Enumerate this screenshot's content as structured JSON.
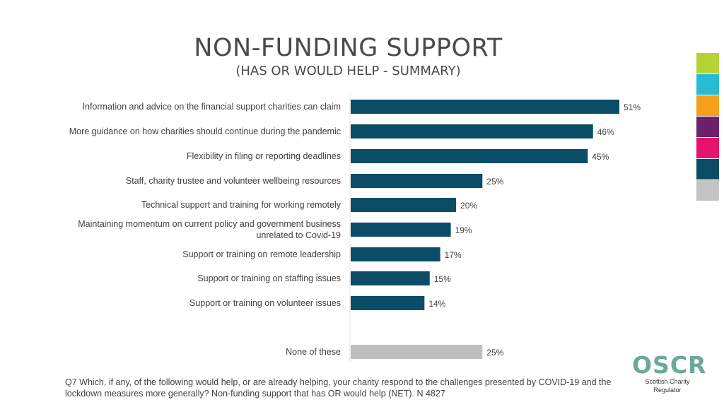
{
  "header": {
    "title": "NON-FUNDING SUPPORT",
    "subtitle": "(HAS OR WOULD HELP - SUMMARY)"
  },
  "chart_data": {
    "type": "bar",
    "orientation": "horizontal",
    "title": "NON-FUNDING SUPPORT",
    "subtitle": "(HAS OR WOULD HELP - SUMMARY)",
    "categories": [
      "Information and advice on the financial support charities can claim",
      "More guidance on how charities should continue during the pandemic",
      "Flexibility in filing or reporting deadlines",
      "Staff, charity trustee and volunteer wellbeing resources",
      "Technical support and training for working remotely",
      "Maintaining momentum on current policy and government business unrelated to Covid-19",
      "Support or training on remote leadership",
      "Support or training on staffing issues",
      "Support or training on volunteer issues",
      "None of these"
    ],
    "category_lines": [
      [
        "Information and advice on the financial support charities can claim"
      ],
      [
        "More guidance on how charities should continue during the pandemic"
      ],
      [
        "Flexibility in filing or reporting deadlines"
      ],
      [
        "Staff, charity trustee and volunteer wellbeing resources"
      ],
      [
        "Technical support and training for working remotely"
      ],
      [
        "Maintaining momentum on current policy and government business",
        "unrelated to Covid-19"
      ],
      [
        "Support or training on remote leadership"
      ],
      [
        "Support or training on staffing issues"
      ],
      [
        "Support or training on volunteer issues"
      ],
      [
        "None of these"
      ]
    ],
    "values": [
      51,
      46,
      45,
      25,
      20,
      19,
      17,
      15,
      14,
      25
    ],
    "value_labels": [
      "51%",
      "46%",
      "45%",
      "25%",
      "20%",
      "19%",
      "17%",
      "15%",
      "14%",
      "25%"
    ],
    "colors": [
      "#0b4d66",
      "#0b4d66",
      "#0b4d66",
      "#0b4d66",
      "#0b4d66",
      "#0b4d66",
      "#0b4d66",
      "#0b4d66",
      "#0b4d66",
      "#bfbfbf"
    ],
    "xlim": [
      0,
      51
    ],
    "grid": false,
    "legend": "none"
  },
  "footnote": "Q7 Which, if any, of the following would help, or are already helping, your charity respond to the challenges presented by COVID-19 and the lockdown measures more generally? Non-funding support that has OR would help (NET). N 4827",
  "logo": {
    "word": "OSCR",
    "tagline": "Scottish Charity Regulator"
  },
  "swatches": [
    "#b5d334",
    "#27bcd3",
    "#f5a01a",
    "#6d2168",
    "#e5126e",
    "#0b4d66",
    "#c4c4c4"
  ]
}
